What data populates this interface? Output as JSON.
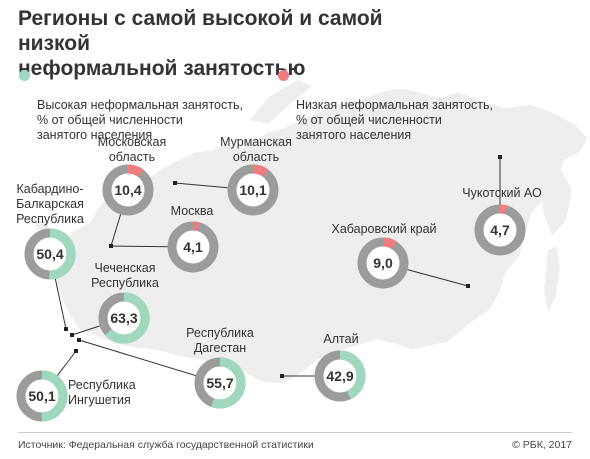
{
  "title": "Регионы с самой высокой и самой низкой\nнеформальной занятостью",
  "legend": {
    "high": {
      "label": "Высокая неформальная занятость,\n% от общей численности\nзанятого населения",
      "color": "#9fd8be"
    },
    "low": {
      "label": "Низкая неформальная занятость,\n% от общей численности\nзанятого населения",
      "color": "#ef7d80"
    }
  },
  "colors": {
    "ring_bg": "#9c9c9c",
    "map": "#eeeeee",
    "map_stroke": "#ffffff",
    "text": "#333333"
  },
  "chart_data": {
    "type": "pie",
    "unit": "%",
    "series": [
      {
        "region": "Кабардино-\nБалкарская\nРеспублика",
        "value": 50.4,
        "value_label": "50,4",
        "group": "high"
      },
      {
        "region": "Московская\nобласть",
        "value": 10.4,
        "value_label": "10,4",
        "group": "low"
      },
      {
        "region": "Мурманская\nобласть",
        "value": 10.1,
        "value_label": "10,1",
        "group": "low"
      },
      {
        "region": "Москва",
        "value": 4.1,
        "value_label": "4,1",
        "group": "low"
      },
      {
        "region": "Чеченская\nРеспублика",
        "value": 63.3,
        "value_label": "63,3",
        "group": "high"
      },
      {
        "region": "Республика\nДагестан",
        "value": 55.7,
        "value_label": "55,7",
        "group": "high"
      },
      {
        "region": "Республика\nИнгушетия",
        "value": 50.1,
        "value_label": "50,1",
        "group": "high"
      },
      {
        "region": "Алтай",
        "value": 42.9,
        "value_label": "42,9",
        "group": "high"
      },
      {
        "region": "Хабаровский край",
        "value": 9.0,
        "value_label": "9,0",
        "group": "low"
      },
      {
        "region": "Чукотский АО",
        "value": 4.7,
        "value_label": "4,7",
        "group": "low"
      }
    ]
  },
  "footer": {
    "source": "Источник: Федеральная служба государственной статистики",
    "copyright": "© РБК, 2017"
  }
}
